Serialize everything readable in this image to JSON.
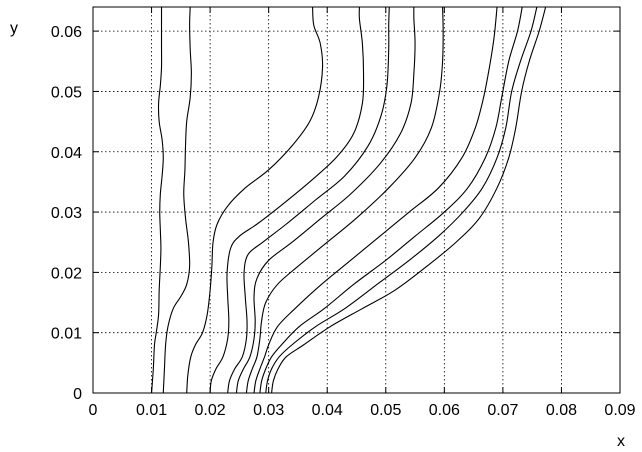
{
  "chart_data": {
    "type": "line",
    "title": "",
    "xlabel": "x",
    "ylabel": "y",
    "xlim": [
      0,
      0.09
    ],
    "ylim": [
      0,
      0.064
    ],
    "xticks": [
      "0",
      "0.01",
      "0.02",
      "0.03",
      "0.04",
      "0.05",
      "0.06",
      "0.07",
      "0.08",
      "0.09"
    ],
    "yticks": [
      "0",
      "0.01",
      "0.02",
      "0.03",
      "0.04",
      "0.05",
      "0.06"
    ],
    "grid": true,
    "line_color": "#000000",
    "series": [
      {
        "points": [
          [
            0.01,
            0
          ],
          [
            0.0103,
            0.004
          ],
          [
            0.0105,
            0.008
          ],
          [
            0.0108,
            0.01
          ],
          [
            0.0112,
            0.013
          ],
          [
            0.0113,
            0.017
          ],
          [
            0.0115,
            0.021
          ],
          [
            0.0116,
            0.024
          ],
          [
            0.0115,
            0.027
          ],
          [
            0.0114,
            0.03
          ],
          [
            0.0115,
            0.033
          ],
          [
            0.0118,
            0.036
          ],
          [
            0.012,
            0.039
          ],
          [
            0.0118,
            0.042
          ],
          [
            0.0113,
            0.045
          ],
          [
            0.0112,
            0.048
          ],
          [
            0.0115,
            0.051
          ],
          [
            0.0117,
            0.054
          ],
          [
            0.0117,
            0.058
          ],
          [
            0.0117,
            0.064
          ]
        ]
      },
      {
        "points": [
          [
            0.012,
            0
          ],
          [
            0.0122,
            0.004
          ],
          [
            0.0124,
            0.008
          ],
          [
            0.0128,
            0.011
          ],
          [
            0.0137,
            0.014
          ],
          [
            0.015,
            0.016
          ],
          [
            0.016,
            0.018
          ],
          [
            0.0165,
            0.021
          ],
          [
            0.0163,
            0.025
          ],
          [
            0.0158,
            0.029
          ],
          [
            0.0155,
            0.033
          ],
          [
            0.0157,
            0.037
          ],
          [
            0.0158,
            0.041
          ],
          [
            0.016,
            0.045
          ],
          [
            0.0166,
            0.049
          ],
          [
            0.0168,
            0.053
          ],
          [
            0.0166,
            0.057
          ],
          [
            0.0165,
            0.061
          ],
          [
            0.0166,
            0.064
          ]
        ]
      },
      {
        "points": [
          [
            0.016,
            0
          ],
          [
            0.0162,
            0.003
          ],
          [
            0.0167,
            0.006
          ],
          [
            0.0175,
            0.008
          ],
          [
            0.0187,
            0.01
          ],
          [
            0.0195,
            0.013
          ],
          [
            0.02,
            0.017
          ],
          [
            0.0203,
            0.021
          ],
          [
            0.0205,
            0.025
          ],
          [
            0.0212,
            0.028
          ],
          [
            0.023,
            0.031
          ],
          [
            0.026,
            0.034
          ],
          [
            0.03,
            0.037
          ],
          [
            0.034,
            0.041
          ],
          [
            0.037,
            0.045
          ],
          [
            0.0385,
            0.049
          ],
          [
            0.0392,
            0.054
          ],
          [
            0.0388,
            0.058
          ],
          [
            0.0377,
            0.061
          ],
          [
            0.0375,
            0.064
          ]
        ]
      },
      {
        "points": [
          [
            0.02,
            0
          ],
          [
            0.0202,
            0.002
          ],
          [
            0.021,
            0.004
          ],
          [
            0.0222,
            0.006
          ],
          [
            0.023,
            0.009
          ],
          [
            0.0232,
            0.012
          ],
          [
            0.023,
            0.016
          ],
          [
            0.0229,
            0.02
          ],
          [
            0.0235,
            0.024
          ],
          [
            0.025,
            0.026
          ],
          [
            0.028,
            0.028
          ],
          [
            0.032,
            0.031
          ],
          [
            0.037,
            0.035
          ],
          [
            0.0415,
            0.039
          ],
          [
            0.0445,
            0.043
          ],
          [
            0.046,
            0.048
          ],
          [
            0.0462,
            0.053
          ],
          [
            0.046,
            0.058
          ],
          [
            0.0455,
            0.062
          ],
          [
            0.0455,
            0.064
          ]
        ]
      },
      {
        "points": [
          [
            0.023,
            0
          ],
          [
            0.0233,
            0.002
          ],
          [
            0.0242,
            0.004
          ],
          [
            0.0255,
            0.006
          ],
          [
            0.0262,
            0.009
          ],
          [
            0.0263,
            0.012
          ],
          [
            0.026,
            0.016
          ],
          [
            0.0258,
            0.02
          ],
          [
            0.0265,
            0.023
          ],
          [
            0.029,
            0.025
          ],
          [
            0.033,
            0.028
          ],
          [
            0.038,
            0.032
          ],
          [
            0.043,
            0.036
          ],
          [
            0.047,
            0.041
          ],
          [
            0.0492,
            0.046
          ],
          [
            0.0502,
            0.051
          ],
          [
            0.0505,
            0.057
          ],
          [
            0.0505,
            0.061
          ],
          [
            0.0506,
            0.064
          ]
        ]
      },
      {
        "points": [
          [
            0.0245,
            0
          ],
          [
            0.0248,
            0.002
          ],
          [
            0.0257,
            0.004
          ],
          [
            0.0268,
            0.006
          ],
          [
            0.0275,
            0.009
          ],
          [
            0.0277,
            0.012
          ],
          [
            0.0275,
            0.016
          ],
          [
            0.028,
            0.019
          ],
          [
            0.03,
            0.022
          ],
          [
            0.034,
            0.025
          ],
          [
            0.039,
            0.029
          ],
          [
            0.044,
            0.033
          ],
          [
            0.049,
            0.038
          ],
          [
            0.0525,
            0.043
          ],
          [
            0.0543,
            0.048
          ],
          [
            0.0548,
            0.053
          ],
          [
            0.055,
            0.058
          ],
          [
            0.0548,
            0.062
          ],
          [
            0.0548,
            0.064
          ]
        ]
      },
      {
        "points": [
          [
            0.0262,
            0
          ],
          [
            0.0265,
            0.002
          ],
          [
            0.0272,
            0.004
          ],
          [
            0.028,
            0.006
          ],
          [
            0.0285,
            0.009
          ],
          [
            0.0288,
            0.012
          ],
          [
            0.0295,
            0.015
          ],
          [
            0.0315,
            0.018
          ],
          [
            0.035,
            0.021
          ],
          [
            0.04,
            0.025
          ],
          [
            0.045,
            0.029
          ],
          [
            0.0505,
            0.034
          ],
          [
            0.055,
            0.039
          ],
          [
            0.0578,
            0.044
          ],
          [
            0.0592,
            0.05
          ],
          [
            0.0597,
            0.055
          ],
          [
            0.0598,
            0.06
          ],
          [
            0.0597,
            0.064
          ]
        ]
      },
      {
        "points": [
          [
            0.0275,
            0
          ],
          [
            0.0278,
            0.002
          ],
          [
            0.0285,
            0.004
          ],
          [
            0.0293,
            0.006
          ],
          [
            0.03,
            0.008
          ],
          [
            0.0315,
            0.011
          ],
          [
            0.0345,
            0.014
          ],
          [
            0.039,
            0.018
          ],
          [
            0.044,
            0.022
          ],
          [
            0.049,
            0.026
          ],
          [
            0.054,
            0.03
          ],
          [
            0.059,
            0.034
          ],
          [
            0.063,
            0.039
          ],
          [
            0.0653,
            0.044
          ],
          [
            0.0667,
            0.049
          ],
          [
            0.0677,
            0.054
          ],
          [
            0.0685,
            0.059
          ],
          [
            0.069,
            0.064
          ]
        ]
      },
      {
        "points": [
          [
            0.0285,
            0
          ],
          [
            0.0288,
            0.002
          ],
          [
            0.0295,
            0.004
          ],
          [
            0.0305,
            0.006
          ],
          [
            0.0322,
            0.008
          ],
          [
            0.0352,
            0.011
          ],
          [
            0.0395,
            0.014
          ],
          [
            0.0445,
            0.018
          ],
          [
            0.05,
            0.022
          ],
          [
            0.055,
            0.026
          ],
          [
            0.06,
            0.03
          ],
          [
            0.064,
            0.034
          ],
          [
            0.067,
            0.039
          ],
          [
            0.0688,
            0.044
          ],
          [
            0.0698,
            0.049
          ],
          [
            0.071,
            0.055
          ],
          [
            0.0725,
            0.06
          ],
          [
            0.0733,
            0.064
          ]
        ]
      },
      {
        "points": [
          [
            0.0295,
            0
          ],
          [
            0.0298,
            0.002
          ],
          [
            0.0305,
            0.004
          ],
          [
            0.0318,
            0.006
          ],
          [
            0.034,
            0.008
          ],
          [
            0.038,
            0.011
          ],
          [
            0.043,
            0.014
          ],
          [
            0.0485,
            0.018
          ],
          [
            0.054,
            0.022
          ],
          [
            0.059,
            0.026
          ],
          [
            0.0632,
            0.03
          ],
          [
            0.0665,
            0.034
          ],
          [
            0.069,
            0.039
          ],
          [
            0.0705,
            0.044
          ],
          [
            0.0715,
            0.05
          ],
          [
            0.073,
            0.055
          ],
          [
            0.0748,
            0.06
          ],
          [
            0.0758,
            0.064
          ]
        ]
      },
      {
        "points": [
          [
            0.0305,
            0
          ],
          [
            0.0308,
            0.002
          ],
          [
            0.0316,
            0.004
          ],
          [
            0.033,
            0.006
          ],
          [
            0.036,
            0.008
          ],
          [
            0.0405,
            0.011
          ],
          [
            0.046,
            0.014
          ],
          [
            0.0515,
            0.017
          ],
          [
            0.057,
            0.021
          ],
          [
            0.062,
            0.025
          ],
          [
            0.066,
            0.029
          ],
          [
            0.069,
            0.034
          ],
          [
            0.071,
            0.039
          ],
          [
            0.0722,
            0.044
          ],
          [
            0.0732,
            0.05
          ],
          [
            0.0745,
            0.055
          ],
          [
            0.0762,
            0.06
          ],
          [
            0.0773,
            0.064
          ]
        ]
      }
    ]
  }
}
